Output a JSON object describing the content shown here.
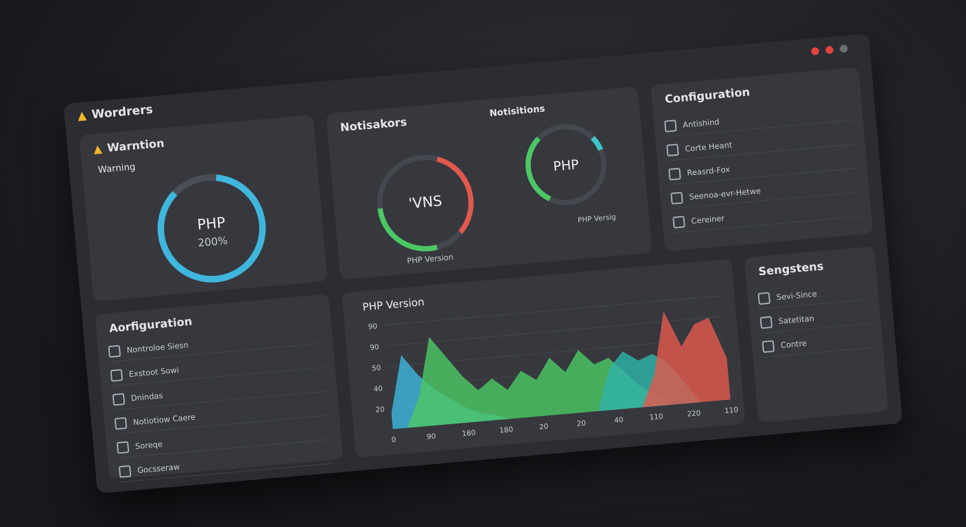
{
  "window": {
    "brand": "Wordrers"
  },
  "warning_panel": {
    "title": "Warntion",
    "label": "Warning",
    "gauge_title": "PHP",
    "gauge_value": "200%"
  },
  "notifications_panel": {
    "title": "Notisakors",
    "subtitle": "Notisitions",
    "gauge1_text": "'VNS",
    "gauge1_caption": "PHP Version",
    "gauge2_text": "PHP",
    "gauge2_caption": "PHP Versig"
  },
  "config_panel": {
    "title": "Configuration",
    "items": [
      "Antishind",
      "Corte Heant",
      "Reasrd-Fox",
      "Seenoa-evr-Hetwe",
      "Cereiner"
    ]
  },
  "settings_panel": {
    "title": "Sengstens",
    "items": [
      "Sevi-Since",
      "Satetitan",
      "Contre"
    ]
  },
  "aconfig_panel": {
    "title": "Aorfiguration",
    "items": [
      "Nontroloe Siesn",
      "Exstoot Sowi",
      "Dnindas",
      "Notiotiow Caere",
      "Soreqe",
      "Gocsseraw"
    ]
  },
  "chart_data": {
    "type": "area",
    "title": "PHP Version",
    "x_labels": [
      "0",
      "90",
      "180",
      "180",
      "20",
      "20",
      "40",
      "110",
      "220",
      "110"
    ],
    "y_labels": [
      "90",
      "90",
      "50",
      "40",
      "20"
    ],
    "ylim": [
      0,
      100
    ],
    "series": [
      {
        "color": "#3fb6dc",
        "values": [
          15,
          70,
          50,
          35,
          25,
          15,
          8,
          5,
          0,
          0,
          0,
          0,
          0,
          0,
          0,
          0,
          0,
          0,
          0,
          0,
          0,
          0,
          0,
          0
        ]
      },
      {
        "color": "#4cc764",
        "values": [
          0,
          0,
          30,
          85,
          65,
          45,
          30,
          40,
          28,
          45,
          35,
          55,
          40,
          60,
          45,
          50,
          35,
          20,
          10,
          0,
          0,
          0,
          0,
          0
        ]
      },
      {
        "color": "#2fb3a8",
        "values": [
          0,
          0,
          0,
          0,
          0,
          0,
          0,
          0,
          0,
          0,
          0,
          0,
          0,
          0,
          0,
          40,
          55,
          45,
          50,
          40,
          20,
          0,
          0,
          0
        ]
      },
      {
        "color": "#e0594d",
        "values": [
          0,
          0,
          0,
          0,
          0,
          0,
          0,
          0,
          0,
          0,
          0,
          0,
          0,
          0,
          0,
          0,
          0,
          0,
          30,
          90,
          55,
          75,
          80,
          40
        ]
      }
    ]
  }
}
